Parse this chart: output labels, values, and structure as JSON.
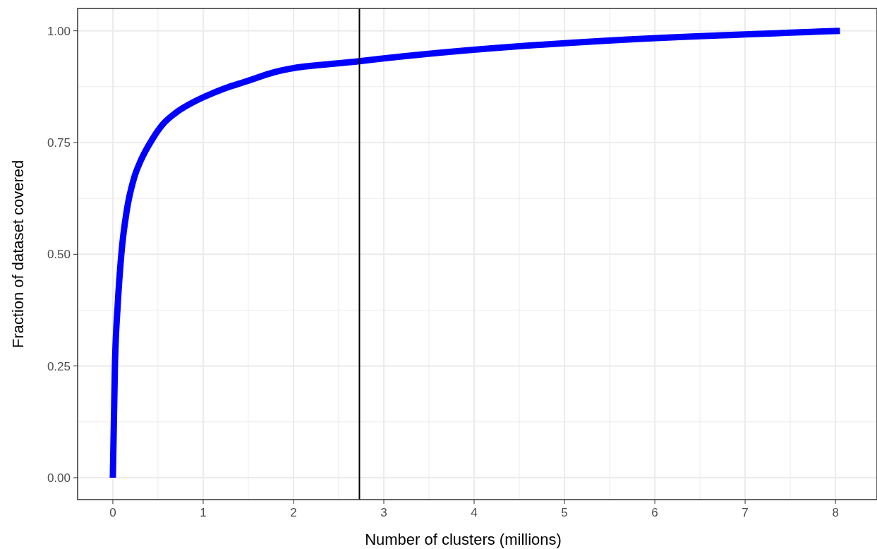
{
  "chart_data": {
    "type": "line",
    "xlabel": "Number of clusters (millions)",
    "ylabel": "Fraction of dataset covered",
    "x": [
      0,
      0.023,
      0.055,
      0.094,
      0.156,
      0.234,
      0.31,
      0.43,
      0.55,
      0.7,
      0.86,
      1.02,
      1.25,
      1.48,
      1.8,
      2.73,
      8.05
    ],
    "series": [
      {
        "color": "#0000ff",
        "values": [
          0,
          0.25,
          0.39,
          0.5,
          0.6,
          0.67,
          0.71,
          0.755,
          0.79,
          0.817,
          0.837,
          0.853,
          0.872,
          0.887,
          0.908,
          0.932,
          1.0
        ]
      }
    ],
    "xlim": [
      -0.39,
      8.46
    ],
    "xticks": [
      0,
      1,
      2,
      3,
      4,
      5,
      6,
      7,
      8
    ],
    "ylim": [
      -0.049,
      1.05
    ],
    "yticks": [
      {
        "value": 0,
        "label": "0.00"
      },
      {
        "value": 0.25,
        "label": "0.25"
      },
      {
        "value": 0.5,
        "label": "0.50"
      },
      {
        "value": 0.75,
        "label": "0.75"
      },
      {
        "value": 1,
        "label": "1.00"
      }
    ],
    "ref_lines": [
      {
        "axis": "x",
        "value": 2.73,
        "color": "#000000"
      }
    ],
    "grid": true
  }
}
